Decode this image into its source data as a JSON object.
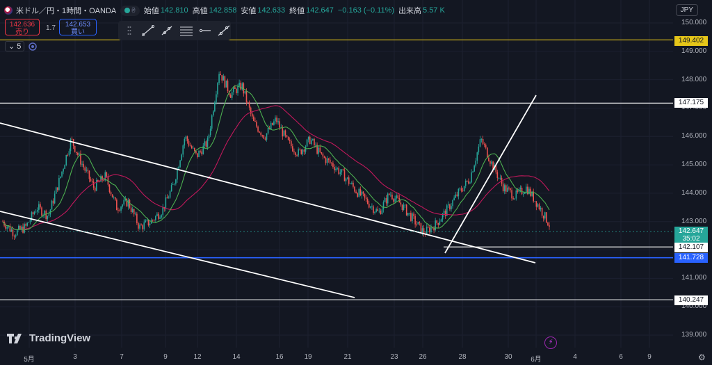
{
  "header": {
    "symbol": "米ドル／円・1時間・OANDA",
    "open_label": "始値",
    "open": "142.810",
    "high_label": "高値",
    "high": "142.858",
    "low_label": "安値",
    "low": "142.633",
    "close_label": "終値",
    "close": "142.647",
    "change": "−0.163 (−0.11%)",
    "volume_label": "出来高",
    "volume": "5.57 K"
  },
  "trade": {
    "sell_price": "142.636",
    "sell_label": "売り",
    "buy_price": "142.653",
    "buy_label": "買い",
    "spread": "1.7"
  },
  "currency": "JPY",
  "ma_legend": {
    "period": "5"
  },
  "price_axis": [
    "150.000",
    "149.000",
    "148.000",
    "147.000",
    "146.000",
    "145.000",
    "144.000",
    "143.000",
    "142.000",
    "141.000",
    "140.000",
    "139.000"
  ],
  "price_labels": {
    "line_149": "149.402",
    "line_147": "147.175",
    "current": "142.647",
    "countdown": "35:02",
    "line_142": "142.107",
    "line_141": "141.728",
    "line_140": "140.247"
  },
  "time_axis": [
    "5月",
    "3",
    "7",
    "9",
    "12",
    "14",
    "16",
    "19",
    "21",
    "23",
    "26",
    "28",
    "30",
    "6月",
    "4",
    "6",
    "9"
  ],
  "brand": "TradingView",
  "colors": {
    "background": "#131722",
    "up": "#26a69a",
    "down": "#ef5350",
    "ma_fast": "#4caf50",
    "ma_slow": "#c2185b",
    "line_yellow": "#e6c619",
    "line_blue": "#2962ff",
    "line_white": "#ffffff"
  },
  "chart_data": {
    "type": "candlestick",
    "instrument": "米ドル／円",
    "timeframe": "1時間",
    "ylim": [
      138.9,
      150.1
    ],
    "horizontal_lines": [
      149.402,
      147.175,
      142.107,
      141.728,
      140.247
    ],
    "approx_closes": [
      143.0,
      142.6,
      142.8,
      143.5,
      143.2,
      144.5,
      145.9,
      145.0,
      144.2,
      144.6,
      143.5,
      143.7,
      142.8,
      143.0,
      143.4,
      144.3,
      146.0,
      145.3,
      145.8,
      148.3,
      147.5,
      147.8,
      146.5,
      146.0,
      146.6,
      145.8,
      145.4,
      145.9,
      145.3,
      145.0,
      144.6,
      144.1,
      143.7,
      143.3,
      144.0,
      143.6,
      143.1,
      142.6,
      142.9,
      143.4,
      144.0,
      144.5,
      145.9,
      145.0,
      144.2,
      143.9,
      144.2,
      143.6,
      142.9
    ]
  }
}
